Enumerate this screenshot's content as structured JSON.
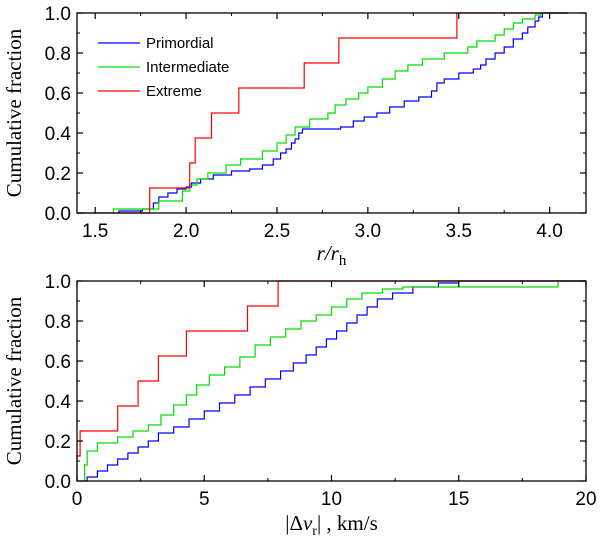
{
  "chart_data": [
    {
      "type": "line",
      "step": true,
      "title": "",
      "xlabel_main": "r/r",
      "xlabel_sub": "h",
      "ylabel": "Cumulative fraction",
      "xlim": [
        1.4,
        4.2
      ],
      "ylim": [
        0.0,
        1.0
      ],
      "xticks": [
        "1.5",
        "2.0",
        "2.5",
        "3.0",
        "3.5",
        "4.0"
      ],
      "xtick_values": [
        1.5,
        2.0,
        2.5,
        3.0,
        3.5,
        4.0
      ],
      "yticks": [
        "0.0",
        "0.2",
        "0.4",
        "0.6",
        "0.8",
        "1.0"
      ],
      "ytick_values": [
        0.0,
        0.2,
        0.4,
        0.6,
        0.8,
        1.0
      ],
      "grid": false,
      "legend_position": "top-left",
      "series": [
        {
          "name": "Primordial",
          "color": "#0000ff",
          "points": [
            [
              1.63,
              0.0
            ],
            [
              1.63,
              0.01
            ],
            [
              1.76,
              0.02
            ],
            [
              1.82,
              0.05
            ],
            [
              1.85,
              0.08
            ],
            [
              1.9,
              0.1
            ],
            [
              1.95,
              0.12
            ],
            [
              2.0,
              0.13
            ],
            [
              2.03,
              0.15
            ],
            [
              2.08,
              0.17
            ],
            [
              2.15,
              0.19
            ],
            [
              2.25,
              0.21
            ],
            [
              2.35,
              0.22
            ],
            [
              2.42,
              0.24
            ],
            [
              2.48,
              0.27
            ],
            [
              2.52,
              0.3
            ],
            [
              2.55,
              0.32
            ],
            [
              2.58,
              0.35
            ],
            [
              2.6,
              0.37
            ],
            [
              2.62,
              0.4
            ],
            [
              2.64,
              0.42
            ],
            [
              2.85,
              0.43
            ],
            [
              2.92,
              0.46
            ],
            [
              2.98,
              0.48
            ],
            [
              3.05,
              0.5
            ],
            [
              3.12,
              0.53
            ],
            [
              3.2,
              0.56
            ],
            [
              3.28,
              0.58
            ],
            [
              3.35,
              0.61
            ],
            [
              3.38,
              0.65
            ],
            [
              3.42,
              0.67
            ],
            [
              3.5,
              0.7
            ],
            [
              3.58,
              0.72
            ],
            [
              3.62,
              0.74
            ],
            [
              3.65,
              0.77
            ],
            [
              3.7,
              0.8
            ],
            [
              3.75,
              0.83
            ],
            [
              3.8,
              0.87
            ],
            [
              3.85,
              0.9
            ],
            [
              3.88,
              0.93
            ],
            [
              3.92,
              0.96
            ],
            [
              3.94,
              0.98
            ],
            [
              3.96,
              1.0
            ],
            [
              4.1,
              1.0
            ]
          ]
        },
        {
          "name": "Intermediate",
          "color": "#00dd00",
          "points": [
            [
              1.6,
              0.0
            ],
            [
              1.6,
              0.02
            ],
            [
              1.85,
              0.06
            ],
            [
              1.98,
              0.11
            ],
            [
              2.02,
              0.14
            ],
            [
              2.06,
              0.17
            ],
            [
              2.12,
              0.2
            ],
            [
              2.22,
              0.24
            ],
            [
              2.3,
              0.27
            ],
            [
              2.42,
              0.31
            ],
            [
              2.5,
              0.35
            ],
            [
              2.55,
              0.39
            ],
            [
              2.6,
              0.43
            ],
            [
              2.68,
              0.47
            ],
            [
              2.78,
              0.5
            ],
            [
              2.82,
              0.54
            ],
            [
              2.88,
              0.57
            ],
            [
              2.95,
              0.6
            ],
            [
              3.0,
              0.63
            ],
            [
              3.08,
              0.67
            ],
            [
              3.15,
              0.71
            ],
            [
              3.22,
              0.74
            ],
            [
              3.3,
              0.77
            ],
            [
              3.42,
              0.8
            ],
            [
              3.55,
              0.83
            ],
            [
              3.6,
              0.86
            ],
            [
              3.7,
              0.89
            ],
            [
              3.75,
              0.92
            ],
            [
              3.8,
              0.95
            ],
            [
              3.85,
              0.97
            ],
            [
              3.92,
              0.99
            ],
            [
              3.95,
              1.0
            ],
            [
              4.1,
              1.0
            ]
          ]
        },
        {
          "name": "Extreme",
          "color": "#ff0000",
          "points": [
            [
              1.4,
              0.0
            ],
            [
              1.8,
              0.0
            ],
            [
              1.8,
              0.125
            ],
            [
              2.02,
              0.125
            ],
            [
              2.02,
              0.25
            ],
            [
              2.05,
              0.25
            ],
            [
              2.05,
              0.375
            ],
            [
              2.14,
              0.375
            ],
            [
              2.14,
              0.5
            ],
            [
              2.29,
              0.5
            ],
            [
              2.29,
              0.625
            ],
            [
              2.65,
              0.625
            ],
            [
              2.65,
              0.75
            ],
            [
              2.84,
              0.75
            ],
            [
              2.84,
              0.875
            ],
            [
              3.49,
              0.875
            ],
            [
              3.49,
              1.0
            ],
            [
              4.1,
              1.0
            ]
          ]
        }
      ]
    },
    {
      "type": "line",
      "step": true,
      "title": "",
      "xlabel": "|Δv_r| , km/s",
      "xlabel_parts": [
        "|Δ",
        "v",
        "r",
        "| , km/s"
      ],
      "ylabel": "Cumulative fraction",
      "xlim": [
        0,
        20
      ],
      "ylim": [
        0.0,
        1.0
      ],
      "xticks": [
        "0",
        "5",
        "10",
        "15",
        "20"
      ],
      "xtick_values": [
        0,
        5,
        10,
        15,
        20
      ],
      "yticks": [
        "0.0",
        "0.2",
        "0.4",
        "0.6",
        "0.8",
        "1.0"
      ],
      "ytick_values": [
        0.0,
        0.2,
        0.4,
        0.6,
        0.8,
        1.0
      ],
      "grid": false,
      "legend_position": "none",
      "series": [
        {
          "name": "Primordial",
          "color": "#0000ff",
          "points": [
            [
              0.3,
              0.0
            ],
            [
              0.4,
              0.02
            ],
            [
              0.8,
              0.05
            ],
            [
              1.2,
              0.08
            ],
            [
              1.6,
              0.11
            ],
            [
              2.0,
              0.14
            ],
            [
              2.4,
              0.17
            ],
            [
              2.8,
              0.2
            ],
            [
              3.2,
              0.24
            ],
            [
              3.8,
              0.27
            ],
            [
              4.4,
              0.31
            ],
            [
              5.0,
              0.35
            ],
            [
              5.6,
              0.39
            ],
            [
              6.2,
              0.43
            ],
            [
              6.8,
              0.47
            ],
            [
              7.4,
              0.51
            ],
            [
              8.0,
              0.55
            ],
            [
              8.5,
              0.59
            ],
            [
              9.0,
              0.63
            ],
            [
              9.4,
              0.67
            ],
            [
              9.8,
              0.71
            ],
            [
              10.2,
              0.75
            ],
            [
              10.6,
              0.79
            ],
            [
              11.0,
              0.83
            ],
            [
              11.4,
              0.87
            ],
            [
              11.8,
              0.91
            ],
            [
              12.4,
              0.94
            ],
            [
              13.2,
              0.97
            ],
            [
              14.2,
              0.99
            ],
            [
              15.0,
              1.0
            ],
            [
              20.0,
              1.0
            ]
          ]
        },
        {
          "name": "Intermediate",
          "color": "#00dd00",
          "points": [
            [
              0.2,
              0.0
            ],
            [
              0.3,
              0.08
            ],
            [
              0.4,
              0.15
            ],
            [
              0.8,
              0.19
            ],
            [
              1.6,
              0.22
            ],
            [
              2.2,
              0.25
            ],
            [
              2.8,
              0.28
            ],
            [
              3.3,
              0.33
            ],
            [
              3.8,
              0.38
            ],
            [
              4.3,
              0.43
            ],
            [
              4.7,
              0.48
            ],
            [
              5.2,
              0.53
            ],
            [
              5.8,
              0.57
            ],
            [
              6.4,
              0.62
            ],
            [
              7.0,
              0.68
            ],
            [
              7.6,
              0.72
            ],
            [
              8.2,
              0.76
            ],
            [
              8.8,
              0.8
            ],
            [
              9.4,
              0.83
            ],
            [
              10.0,
              0.87
            ],
            [
              10.6,
              0.91
            ],
            [
              11.2,
              0.94
            ],
            [
              12.0,
              0.96
            ],
            [
              12.8,
              0.97
            ],
            [
              18.9,
              0.97
            ],
            [
              18.9,
              1.0
            ],
            [
              20.0,
              1.0
            ]
          ]
        },
        {
          "name": "Extreme",
          "color": "#ff0000",
          "points": [
            [
              0.0,
              0.0
            ],
            [
              0.0,
              0.125
            ],
            [
              0.12,
              0.125
            ],
            [
              0.12,
              0.25
            ],
            [
              1.6,
              0.25
            ],
            [
              1.6,
              0.375
            ],
            [
              2.4,
              0.375
            ],
            [
              2.4,
              0.5
            ],
            [
              3.2,
              0.5
            ],
            [
              3.2,
              0.625
            ],
            [
              4.3,
              0.625
            ],
            [
              4.3,
              0.75
            ],
            [
              6.7,
              0.75
            ],
            [
              6.7,
              0.875
            ],
            [
              7.9,
              0.875
            ],
            [
              7.9,
              1.0
            ],
            [
              20.0,
              1.0
            ]
          ]
        }
      ]
    }
  ]
}
